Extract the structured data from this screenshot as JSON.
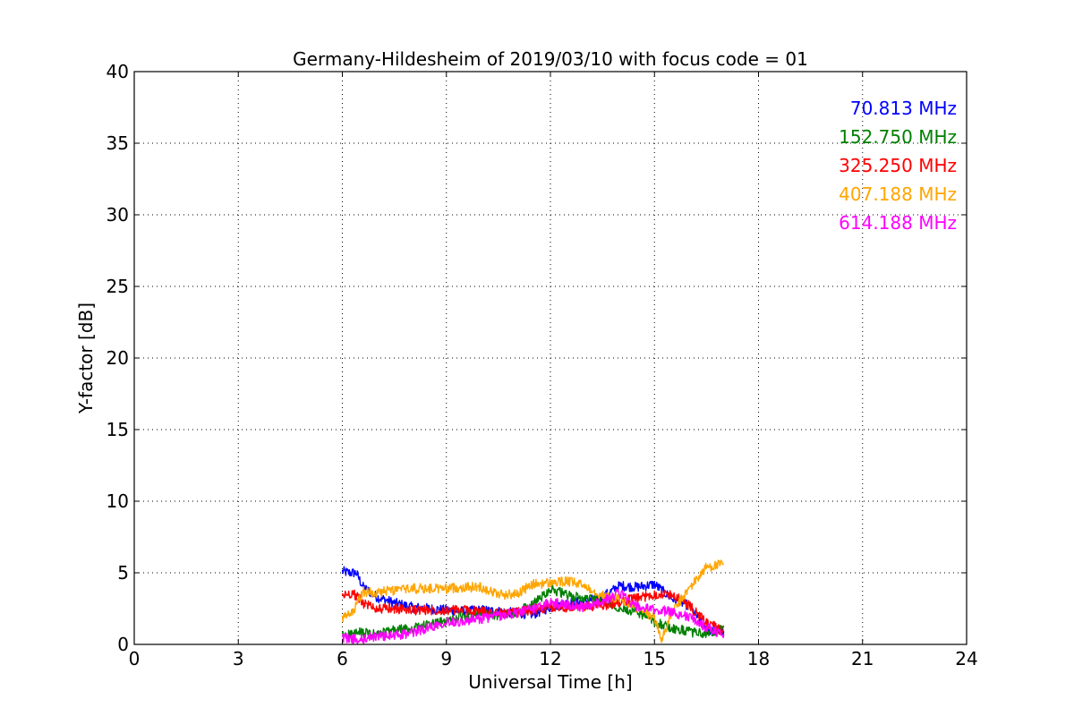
{
  "chart_data": {
    "type": "line",
    "title": "Germany-Hildesheim of 2019/03/10 with focus code = 01",
    "xlabel": "Universal Time [h]",
    "ylabel": "Y-factor [dB]",
    "xlim": [
      0,
      24
    ],
    "ylim": [
      0,
      40
    ],
    "xticks": [
      "0",
      "3",
      "6",
      "9",
      "12",
      "15",
      "18",
      "21",
      "24"
    ],
    "yticks": [
      "0",
      "5",
      "10",
      "15",
      "20",
      "25",
      "30",
      "35",
      "40"
    ],
    "grid": true,
    "legend_position": "top-right",
    "series": [
      {
        "name": "70.813 MHz",
        "color": "#0000ff",
        "x": [
          6.0,
          6.2,
          6.4,
          6.6,
          7.0,
          7.5,
          8.0,
          8.5,
          9.0,
          9.5,
          10.0,
          10.5,
          11.0,
          11.5,
          12.0,
          12.5,
          13.0,
          13.5,
          14.0,
          14.5,
          15.0,
          15.5,
          16.0,
          16.5,
          17.0
        ],
        "y": [
          5.1,
          5.0,
          5.0,
          4.0,
          3.3,
          2.9,
          2.6,
          2.5,
          2.4,
          2.3,
          2.4,
          2.3,
          2.2,
          2.1,
          2.6,
          2.9,
          3.0,
          3.3,
          4.1,
          4.0,
          4.2,
          3.2,
          2.7,
          1.0,
          0.9
        ]
      },
      {
        "name": "152.750 MHz",
        "color": "#008000",
        "x": [
          6.0,
          6.5,
          7.0,
          7.5,
          8.0,
          8.5,
          9.0,
          9.5,
          10.0,
          10.5,
          11.0,
          11.5,
          12.0,
          12.5,
          13.0,
          13.5,
          14.0,
          14.5,
          15.0,
          15.5,
          16.0,
          16.5,
          17.0
        ],
        "y": [
          0.6,
          0.8,
          0.7,
          1.0,
          1.1,
          1.4,
          1.6,
          2.0,
          2.1,
          2.0,
          2.2,
          2.8,
          3.9,
          3.4,
          3.2,
          3.0,
          2.6,
          2.3,
          1.6,
          1.1,
          0.9,
          0.7,
          1.2
        ]
      },
      {
        "name": "325.250 MHz",
        "color": "#ff0000",
        "x": [
          6.0,
          6.3,
          6.6,
          7.0,
          7.5,
          8.0,
          8.5,
          9.0,
          9.5,
          10.0,
          10.5,
          11.0,
          11.5,
          12.0,
          12.5,
          13.0,
          13.5,
          14.0,
          14.5,
          15.0,
          15.5,
          16.0,
          16.5,
          17.0
        ],
        "y": [
          3.4,
          3.6,
          2.9,
          2.5,
          2.5,
          2.4,
          2.4,
          2.4,
          2.4,
          2.3,
          2.2,
          2.2,
          2.4,
          2.6,
          2.6,
          2.6,
          2.7,
          3.0,
          3.2,
          3.5,
          3.5,
          2.7,
          1.5,
          0.9
        ]
      },
      {
        "name": "407.188 MHz",
        "color": "#ffa500",
        "x": [
          6.0,
          6.3,
          6.6,
          7.0,
          7.5,
          8.0,
          8.5,
          9.0,
          9.5,
          10.0,
          10.5,
          11.0,
          11.5,
          12.0,
          12.5,
          13.0,
          13.5,
          14.0,
          14.5,
          15.0,
          15.2,
          15.5,
          16.0,
          16.5,
          17.0
        ],
        "y": [
          1.8,
          2.2,
          3.7,
          3.6,
          3.8,
          3.9,
          3.9,
          3.9,
          4.0,
          4.0,
          3.5,
          3.5,
          4.2,
          4.3,
          4.4,
          4.1,
          3.4,
          3.2,
          2.5,
          1.9,
          0.3,
          2.2,
          3.9,
          5.4,
          5.6
        ]
      },
      {
        "name": "614.188 MHz",
        "color": "#ff00ff",
        "x": [
          6.0,
          6.5,
          7.0,
          7.5,
          8.0,
          8.5,
          9.0,
          9.5,
          10.0,
          10.5,
          11.0,
          11.5,
          12.0,
          12.5,
          13.0,
          13.5,
          14.0,
          14.5,
          15.0,
          15.5,
          16.0,
          16.5,
          17.0
        ],
        "y": [
          0.5,
          0.3,
          0.6,
          0.6,
          0.8,
          1.2,
          1.6,
          1.6,
          1.8,
          2.0,
          2.2,
          2.5,
          2.9,
          2.8,
          2.6,
          3.0,
          3.6,
          2.6,
          2.4,
          2.3,
          1.9,
          1.2,
          0.7
        ]
      }
    ]
  }
}
